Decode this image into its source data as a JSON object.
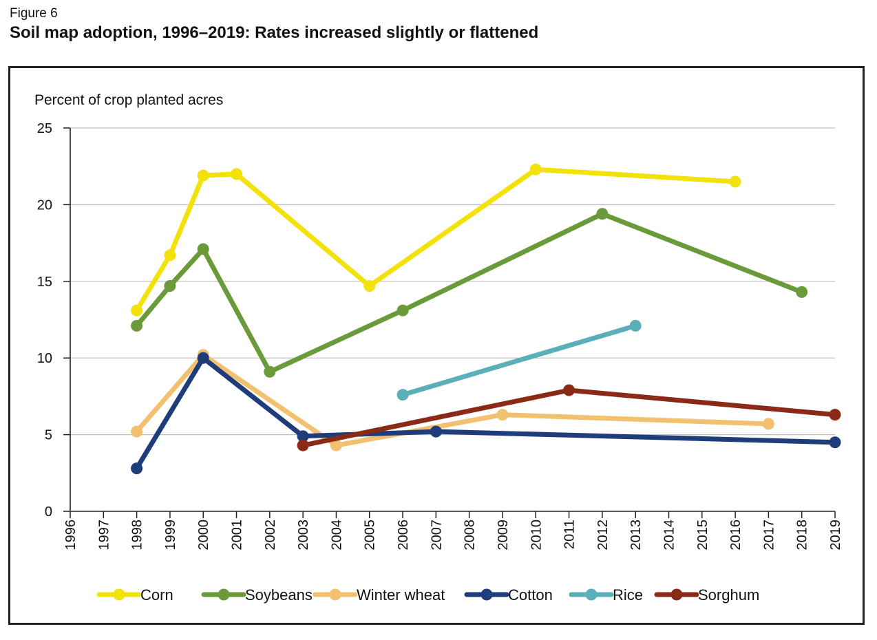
{
  "figure_label": "Figure 6",
  "title": "Soil map adoption, 1996–2019: Rates increased slightly or flattened",
  "chart_data": {
    "type": "line",
    "ylabel": "Percent of crop planted acres",
    "xlabel": "",
    "ylim": [
      0,
      25
    ],
    "yticks": [
      0,
      5,
      10,
      15,
      20,
      25
    ],
    "xticks": [
      "1996",
      "1997",
      "1998",
      "1999",
      "2000",
      "2001",
      "2002",
      "2003",
      "2004",
      "2005",
      "2006",
      "2007",
      "2008",
      "2009",
      "2010",
      "2011",
      "2012",
      "2013",
      "2014",
      "2015",
      "2016",
      "2017",
      "2018",
      "2019"
    ],
    "grid": "horizontal",
    "legend_position": "bottom",
    "series": [
      {
        "name": "Corn",
        "color": "#f2e20a",
        "points": [
          [
            1998,
            13.1
          ],
          [
            1999,
            16.7
          ],
          [
            2000,
            21.9
          ],
          [
            2001,
            22.0
          ],
          [
            2005,
            14.7
          ],
          [
            2010,
            22.3
          ],
          [
            2016,
            21.5
          ]
        ]
      },
      {
        "name": "Soybeans",
        "color": "#6b9a3a",
        "points": [
          [
            1998,
            12.1
          ],
          [
            1999,
            14.7
          ],
          [
            2000,
            17.1
          ],
          [
            2002,
            9.1
          ],
          [
            2006,
            13.1
          ],
          [
            2012,
            19.4
          ],
          [
            2018,
            14.3
          ]
        ]
      },
      {
        "name": "Winter wheat",
        "color": "#f2c170",
        "points": [
          [
            1998,
            5.2
          ],
          [
            2000,
            10.2
          ],
          [
            2004,
            4.3
          ],
          [
            2009,
            6.3
          ],
          [
            2017,
            5.7
          ]
        ]
      },
      {
        "name": "Cotton",
        "color": "#1f3d7a",
        "points": [
          [
            1998,
            2.8
          ],
          [
            2000,
            10.0
          ],
          [
            2003,
            4.9
          ],
          [
            2007,
            5.2
          ],
          [
            2019,
            4.5
          ]
        ]
      },
      {
        "name": "Rice",
        "color": "#5aafb8",
        "points": [
          [
            2006,
            7.6
          ],
          [
            2013,
            12.1
          ]
        ]
      },
      {
        "name": "Sorghum",
        "color": "#8b2a17",
        "points": [
          [
            2003,
            4.3
          ],
          [
            2011,
            7.9
          ],
          [
            2019,
            6.3
          ]
        ]
      }
    ]
  }
}
